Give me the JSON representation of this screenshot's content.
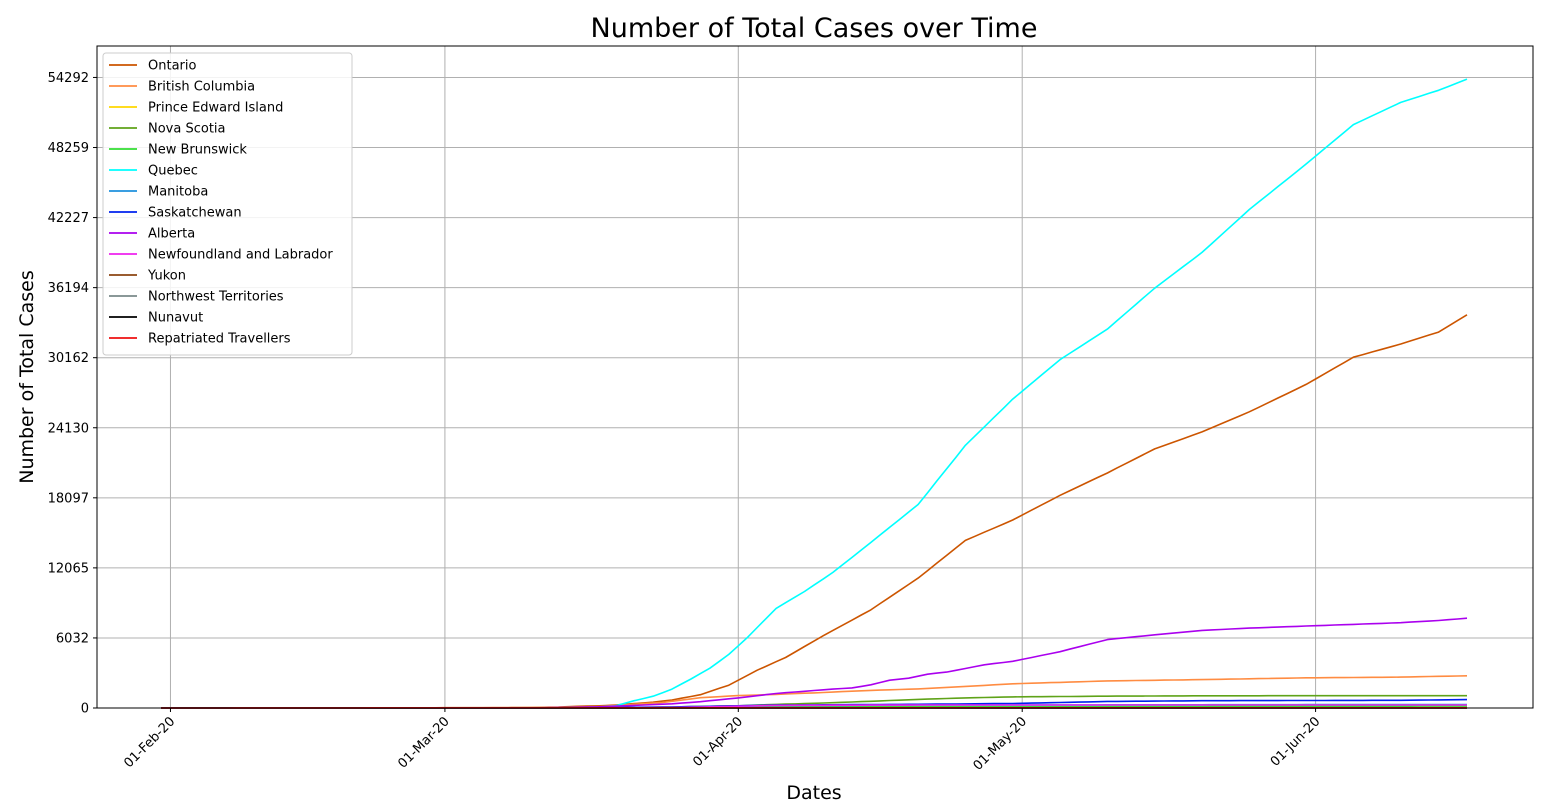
{
  "chart_data": {
    "type": "line",
    "title": "Number of Total Cases over Time",
    "xlabel": "Dates",
    "ylabel": "Number of Total Cases",
    "x_start": "2020-01-31",
    "x_end": "2020-06-17",
    "xticks": [
      {
        "date": "2020-02-01",
        "label": "01-Feb-20"
      },
      {
        "date": "2020-03-01",
        "label": "01-Mar-20"
      },
      {
        "date": "2020-04-01",
        "label": "01-Apr-20"
      },
      {
        "date": "2020-05-01",
        "label": "01-May-20"
      },
      {
        "date": "2020-06-01",
        "label": "01-Jun-20"
      }
    ],
    "yticks": [
      0,
      6032,
      12065,
      18097,
      24130,
      30162,
      36194,
      42227,
      48259,
      54292
    ],
    "ylim": [
      0,
      57000
    ],
    "grid": true,
    "legend_position": "top-left",
    "series": [
      {
        "name": "Ontario",
        "color": "#cc5500",
        "points": [
          [
            "2020-01-31",
            3
          ],
          [
            "2020-02-20",
            4
          ],
          [
            "2020-02-28",
            20
          ],
          [
            "2020-03-05",
            25
          ],
          [
            "2020-03-10",
            37
          ],
          [
            "2020-03-13",
            79
          ],
          [
            "2020-03-15",
            145
          ],
          [
            "2020-03-17",
            181
          ],
          [
            "2020-03-19",
            258
          ],
          [
            "2020-03-21",
            377
          ],
          [
            "2020-03-23",
            503
          ],
          [
            "2020-03-25",
            688
          ],
          [
            "2020-03-28",
            1144
          ],
          [
            "2020-03-31",
            1966
          ],
          [
            "2020-04-03",
            3255
          ],
          [
            "2020-04-06",
            4347
          ],
          [
            "2020-04-10",
            6237
          ],
          [
            "2020-04-15",
            8447
          ],
          [
            "2020-04-20",
            11184
          ],
          [
            "2020-04-25",
            14432
          ],
          [
            "2020-04-30",
            16187
          ],
          [
            "2020-05-05",
            18310
          ],
          [
            "2020-05-10",
            20238
          ],
          [
            "2020-05-15",
            22313
          ],
          [
            "2020-05-20",
            23774
          ],
          [
            "2020-05-25",
            25500
          ],
          [
            "2020-05-31",
            27859
          ],
          [
            "2020-06-05",
            30202
          ],
          [
            "2020-06-10",
            31341
          ],
          [
            "2020-06-14",
            32370
          ],
          [
            "2020-06-17",
            33853
          ]
        ]
      },
      {
        "name": "British Columbia",
        "color": "#ff8c42",
        "points": [
          [
            "2020-01-31",
            1
          ],
          [
            "2020-02-20",
            5
          ],
          [
            "2020-03-01",
            8
          ],
          [
            "2020-03-05",
            21
          ],
          [
            "2020-03-10",
            32
          ],
          [
            "2020-03-14",
            64
          ],
          [
            "2020-03-17",
            103
          ],
          [
            "2020-03-20",
            271
          ],
          [
            "2020-03-24",
            472
          ],
          [
            "2020-03-28",
            884
          ],
          [
            "2020-04-01",
            1066
          ],
          [
            "2020-04-05",
            1174
          ],
          [
            "2020-04-10",
            1336
          ],
          [
            "2020-04-15",
            1517
          ],
          [
            "2020-04-20",
            1647
          ],
          [
            "2020-04-25",
            1858
          ],
          [
            "2020-04-30",
            2087
          ],
          [
            "2020-05-10",
            2330
          ],
          [
            "2020-05-20",
            2446
          ],
          [
            "2020-05-31",
            2597
          ],
          [
            "2020-06-10",
            2659
          ],
          [
            "2020-06-17",
            2775
          ]
        ]
      },
      {
        "name": "Prince Edward Island",
        "color": "#ffd700",
        "points": [
          [
            "2020-01-31",
            0
          ],
          [
            "2020-03-14",
            1
          ],
          [
            "2020-03-30",
            21
          ],
          [
            "2020-04-15",
            26
          ],
          [
            "2020-06-17",
            27
          ]
        ]
      },
      {
        "name": "Nova Scotia",
        "color": "#5fa319",
        "points": [
          [
            "2020-01-31",
            0
          ],
          [
            "2020-03-15",
            5
          ],
          [
            "2020-03-25",
            90
          ],
          [
            "2020-04-01",
            193
          ],
          [
            "2020-04-05",
            310
          ],
          [
            "2020-04-10",
            427
          ],
          [
            "2020-04-15",
            579
          ],
          [
            "2020-04-20",
            737
          ],
          [
            "2020-04-25",
            873
          ],
          [
            "2020-04-30",
            959
          ],
          [
            "2020-05-10",
            1018
          ],
          [
            "2020-05-20",
            1053
          ],
          [
            "2020-06-17",
            1061
          ]
        ]
      },
      {
        "name": "New Brunswick",
        "color": "#33dd33",
        "points": [
          [
            "2020-01-31",
            0
          ],
          [
            "2020-03-11",
            1
          ],
          [
            "2020-03-25",
            45
          ],
          [
            "2020-04-05",
            105
          ],
          [
            "2020-04-20",
            118
          ],
          [
            "2020-06-17",
            164
          ]
        ]
      },
      {
        "name": "Quebec",
        "color": "#00ffff",
        "points": [
          [
            "2020-01-31",
            0
          ],
          [
            "2020-02-28",
            1
          ],
          [
            "2020-03-05",
            2
          ],
          [
            "2020-03-08",
            4
          ],
          [
            "2020-03-11",
            9
          ],
          [
            "2020-03-13",
            17
          ],
          [
            "2020-03-15",
            39
          ],
          [
            "2020-03-17",
            74
          ],
          [
            "2020-03-19",
            181
          ],
          [
            "2020-03-21",
            628
          ],
          [
            "2020-03-23",
            1013
          ],
          [
            "2020-03-25",
            1629
          ],
          [
            "2020-03-27",
            2498
          ],
          [
            "2020-03-29",
            3430
          ],
          [
            "2020-03-31",
            4611
          ],
          [
            "2020-04-02",
            6101
          ],
          [
            "2020-04-05",
            8580
          ],
          [
            "2020-04-08",
            10031
          ],
          [
            "2020-04-11",
            11677
          ],
          [
            "2020-04-15",
            14248
          ],
          [
            "2020-04-20",
            17521
          ],
          [
            "2020-04-25",
            22616
          ],
          [
            "2020-04-30",
            26594
          ],
          [
            "2020-05-05",
            30000
          ],
          [
            "2020-05-10",
            32623
          ],
          [
            "2020-05-15",
            36150
          ],
          [
            "2020-05-20",
            39225
          ],
          [
            "2020-05-25",
            42920
          ],
          [
            "2020-05-31",
            46838
          ],
          [
            "2020-06-05",
            50232
          ],
          [
            "2020-06-10",
            52143
          ],
          [
            "2020-06-14",
            53185
          ],
          [
            "2020-06-17",
            54146
          ]
        ]
      },
      {
        "name": "Manitoba",
        "color": "#1e90dd",
        "points": [
          [
            "2020-01-31",
            0
          ],
          [
            "2020-03-12",
            1
          ],
          [
            "2020-03-25",
            35
          ],
          [
            "2020-04-05",
            203
          ],
          [
            "2020-04-20",
            255
          ],
          [
            "2020-06-17",
            303
          ]
        ]
      },
      {
        "name": "Saskatchewan",
        "color": "#0022ee",
        "points": [
          [
            "2020-01-31",
            0
          ],
          [
            "2020-03-12",
            1
          ],
          [
            "2020-03-25",
            86
          ],
          [
            "2020-04-05",
            253
          ],
          [
            "2020-04-20",
            320
          ],
          [
            "2020-04-30",
            389
          ],
          [
            "2020-05-10",
            564
          ],
          [
            "2020-05-20",
            627
          ],
          [
            "2020-05-31",
            646
          ],
          [
            "2020-06-10",
            665
          ],
          [
            "2020-06-17",
            724
          ]
        ]
      },
      {
        "name": "Alberta",
        "color": "#aa00ee",
        "points": [
          [
            "2020-01-31",
            0
          ],
          [
            "2020-03-05",
            1
          ],
          [
            "2020-03-09",
            7
          ],
          [
            "2020-03-12",
            23
          ],
          [
            "2020-03-15",
            56
          ],
          [
            "2020-03-18",
            119
          ],
          [
            "2020-03-21",
            226
          ],
          [
            "2020-03-25",
            358
          ],
          [
            "2020-03-28",
            542
          ],
          [
            "2020-04-01",
            871
          ],
          [
            "2020-04-05",
            1250
          ],
          [
            "2020-04-10",
            1569
          ],
          [
            "2020-04-13",
            1732
          ],
          [
            "2020-04-15",
            1996
          ],
          [
            "2020-04-17",
            2397
          ],
          [
            "2020-04-19",
            2562
          ],
          [
            "2020-04-21",
            2908
          ],
          [
            "2020-04-23",
            3095
          ],
          [
            "2020-04-25",
            3401
          ],
          [
            "2020-04-27",
            3720
          ],
          [
            "2020-04-30",
            4017
          ],
          [
            "2020-05-05",
            4850
          ],
          [
            "2020-05-10",
            5893
          ],
          [
            "2020-05-15",
            6300
          ],
          [
            "2020-05-20",
            6683
          ],
          [
            "2020-05-25",
            6879
          ],
          [
            "2020-05-31",
            7057
          ],
          [
            "2020-06-05",
            7202
          ],
          [
            "2020-06-10",
            7346
          ],
          [
            "2020-06-14",
            7530
          ],
          [
            "2020-06-17",
            7736
          ]
        ]
      },
      {
        "name": "Newfoundland and Labrador",
        "color": "#ee22ee",
        "points": [
          [
            "2020-01-31",
            0
          ],
          [
            "2020-03-15",
            1
          ],
          [
            "2020-03-25",
            35
          ],
          [
            "2020-04-05",
            226
          ],
          [
            "2020-04-20",
            256
          ],
          [
            "2020-06-17",
            261
          ]
        ]
      },
      {
        "name": "Yukon",
        "color": "#8b4513",
        "points": [
          [
            "2020-01-31",
            0
          ],
          [
            "2020-03-22",
            2
          ],
          [
            "2020-04-05",
            8
          ],
          [
            "2020-06-17",
            11
          ]
        ]
      },
      {
        "name": "Northwest Territories",
        "color": "#7a8a8a",
        "points": [
          [
            "2020-01-31",
            0
          ],
          [
            "2020-03-21",
            1
          ],
          [
            "2020-04-05",
            5
          ],
          [
            "2020-06-17",
            5
          ]
        ]
      },
      {
        "name": "Nunavut",
        "color": "#000000",
        "points": [
          [
            "2020-01-31",
            0
          ],
          [
            "2020-06-17",
            0
          ]
        ]
      },
      {
        "name": "Repatriated Travellers",
        "color": "#ee1111",
        "points": [
          [
            "2020-01-31",
            0
          ],
          [
            "2020-02-22",
            13
          ],
          [
            "2020-06-17",
            13
          ]
        ]
      }
    ]
  }
}
